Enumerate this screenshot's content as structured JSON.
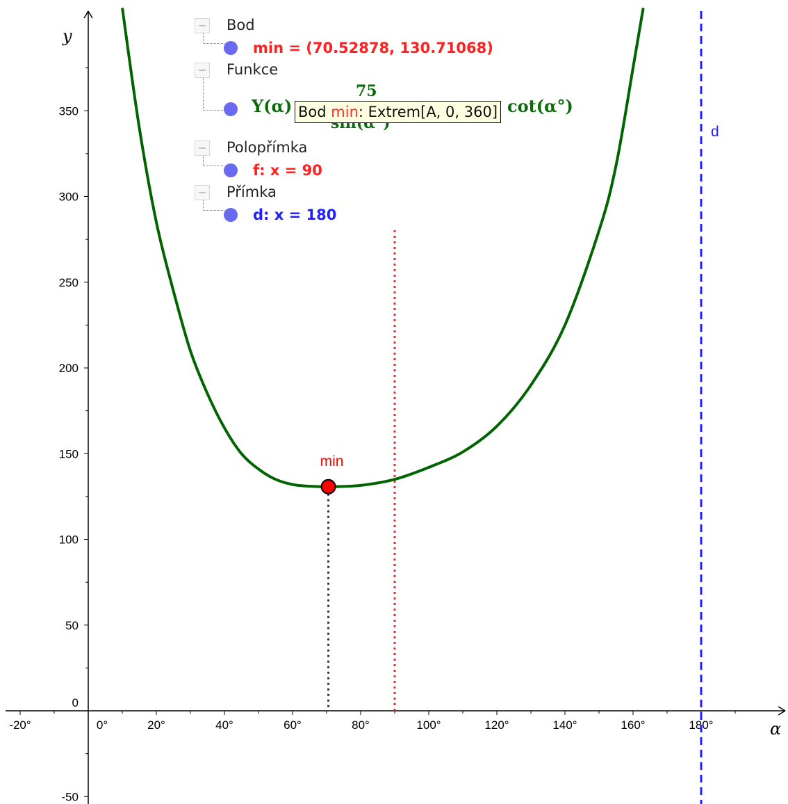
{
  "algebra": {
    "groups": [
      {
        "label": "Bod",
        "items": [
          {
            "text": "min = (70.52878, 130.71068)",
            "color": "#ff2020"
          }
        ]
      },
      {
        "label": "Funkce",
        "items": [
          {
            "text": "",
            "color": "#0a6b0a"
          }
        ]
      },
      {
        "label": "Polopřímka",
        "items": [
          {
            "text": "f: x = 90",
            "color": "#ff2020"
          }
        ]
      },
      {
        "label": "Přímka",
        "items": [
          {
            "text": "d: x = 180",
            "color": "#2020ff"
          }
        ]
      }
    ],
    "function_expr": {
      "name": "Y(α)",
      "numerator": "75",
      "denominator": "sin(α°)",
      "tail": "cot(α°)"
    }
  },
  "tooltip": {
    "prefix": "Bod",
    "name": "min",
    "suffix": ": Extrem[A, 0, 360]"
  },
  "chart_data": {
    "type": "line",
    "xlabel": "α",
    "ylabel": "y",
    "xlim": [
      -25,
      205
    ],
    "ylim": [
      -55,
      410
    ],
    "x_ticks": [
      -20,
      0,
      20,
      40,
      60,
      80,
      100,
      120,
      140,
      160,
      180
    ],
    "x_tick_labels": [
      "-20°",
      "0°",
      "20°",
      "40°",
      "60°",
      "80°",
      "100°",
      "120°",
      "140°",
      "160°",
      "180°"
    ],
    "y_ticks": [
      -50,
      0,
      50,
      100,
      150,
      200,
      250,
      300,
      350
    ],
    "y_tick_labels": [
      "-50",
      "0",
      "50",
      "100",
      "150",
      "200",
      "250",
      "300",
      "350"
    ],
    "curve_points": [
      {
        "x": 10,
        "y": 410
      },
      {
        "x": 15,
        "y": 340
      },
      {
        "x": 20,
        "y": 285
      },
      {
        "x": 25,
        "y": 245
      },
      {
        "x": 30,
        "y": 210
      },
      {
        "x": 35,
        "y": 185
      },
      {
        "x": 40,
        "y": 165
      },
      {
        "x": 45,
        "y": 150
      },
      {
        "x": 50,
        "y": 141
      },
      {
        "x": 55,
        "y": 135
      },
      {
        "x": 60,
        "y": 132
      },
      {
        "x": 65,
        "y": 131
      },
      {
        "x": 70.52878,
        "y": 130.71068
      },
      {
        "x": 80,
        "y": 131.5
      },
      {
        "x": 90,
        "y": 135
      },
      {
        "x": 100,
        "y": 142
      },
      {
        "x": 110,
        "y": 151
      },
      {
        "x": 120,
        "y": 166
      },
      {
        "x": 130,
        "y": 190
      },
      {
        "x": 140,
        "y": 225
      },
      {
        "x": 150,
        "y": 280
      },
      {
        "x": 155,
        "y": 318
      },
      {
        "x": 160,
        "y": 375
      },
      {
        "x": 163,
        "y": 410
      }
    ],
    "curve_color": "#006400",
    "min_point": {
      "x": 70.52878,
      "y": 130.71068,
      "label": "min",
      "color": "#ff0000"
    },
    "ray_f": {
      "x": 90,
      "y_top": 281,
      "color": "#ff2020"
    },
    "line_d": {
      "x": 180,
      "label": "d",
      "color": "#2020ff"
    }
  }
}
